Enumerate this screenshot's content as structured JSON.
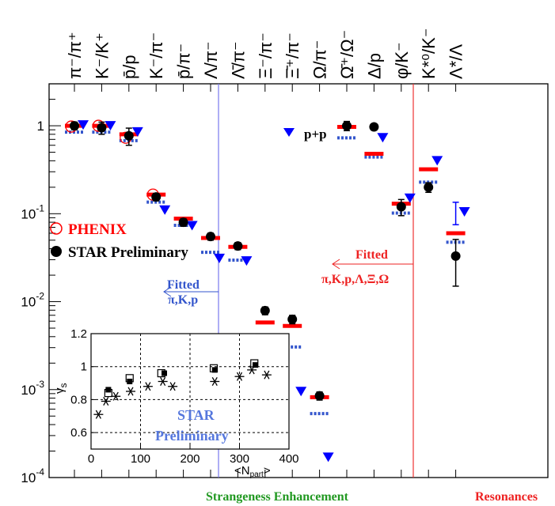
{
  "chart_data": {
    "type": "scatter",
    "yscale": "log",
    "ylim": [
      0.0001,
      3
    ],
    "yticks": [
      {
        "v": 0.0001,
        "b": "10",
        "e": "-4"
      },
      {
        "v": 0.001,
        "b": "10",
        "e": "-3"
      },
      {
        "v": 0.01,
        "b": "10",
        "e": "-2"
      },
      {
        "v": 0.1,
        "b": "10",
        "e": "-1"
      },
      {
        "v": 1,
        "b": "1",
        "e": ""
      }
    ],
    "categories": [
      "π⁻/π⁺",
      "K⁻/K⁺",
      "p̄/p",
      "K⁻/π⁻",
      "p̄/π⁻",
      "Λ/π⁻",
      "Λ̄/π⁻",
      "Ξ⁻/π⁻",
      "Ξ̄⁺/π⁻",
      "Ω/π⁻",
      "Ω̄⁺/Ω⁻",
      "Δ/p",
      "φ/K⁻",
      "K*⁰/K⁻",
      "Λ*/Λ"
    ],
    "series": [
      {
        "name": "STAR Preliminary",
        "marker": "circle-filled",
        "color": "#000000",
        "values": [
          1.0,
          0.95,
          0.77,
          0.155,
          0.08,
          0.055,
          0.043,
          0.0079,
          0.0063,
          0.00085,
          1.0,
          0.97,
          0.12,
          0.2,
          0.033
        ],
        "err": [
          0.1,
          0.15,
          0.17,
          0.015,
          0.008,
          0.005,
          0.004,
          0.0008,
          0.0007,
          9e-05,
          0.12,
          0.08,
          0.025,
          0.025,
          0.018
        ]
      },
      {
        "name": "PHENIX",
        "marker": "circle-open",
        "color": "#ff0000",
        "values": [
          0.98,
          1.0,
          0.73,
          0.165,
          null,
          null,
          null,
          null,
          null,
          null,
          null,
          null,
          null,
          null,
          null
        ]
      },
      {
        "name": "p+p",
        "marker": "triangle-down",
        "color": "#0000ff",
        "values": [
          1.02,
          1.0,
          0.85,
          0.11,
          0.073,
          0.031,
          0.029,
          0.00105,
          0.00095,
          0.00017,
          null,
          0.73,
          0.15,
          0.4,
          0.105
        ],
        "err": [
          null,
          null,
          null,
          null,
          null,
          null,
          null,
          null,
          null,
          null,
          null,
          null,
          null,
          null,
          0.03
        ]
      },
      {
        "name": "Fit π,K,p,Λ,Ξ,Ω",
        "marker": "dash-solid",
        "color": "#ff0000",
        "values": [
          1.0,
          1.0,
          0.8,
          0.165,
          0.088,
          0.053,
          0.042,
          0.0058,
          0.0053,
          0.00082,
          0.97,
          0.48,
          0.13,
          0.32,
          0.06
        ]
      },
      {
        "name": "Fit π,K,p",
        "marker": "dash-dotted",
        "color": "#3355cc",
        "values": [
          1.0,
          1.0,
          0.8,
          0.16,
          0.087,
          0.043,
          0.035,
          0.0043,
          0.0036,
          0.00063,
          0.86,
          0.52,
          0.12,
          0.27,
          0.056
        ]
      }
    ],
    "annotations": {
      "pp": "p+p",
      "phenix": "PHENIX",
      "star": "STAR Preliminary",
      "fitted_a": "Fitted",
      "fitted_a2": "π,K,p",
      "fitted_b": "Fitted",
      "fitted_b2": "π,K,p,Λ,Ξ,Ω",
      "strangeness": "Strangeness Enhancement",
      "resonances": "Resonances"
    },
    "inset": {
      "xlabel": "<N",
      "xlabel_sub": "part",
      "xlabel_end": ">",
      "ylabel": "γ",
      "ylabel_sub": "s",
      "xlim": [
        0,
        400
      ],
      "ylim": [
        0.5,
        1.2
      ],
      "xticks": [
        0,
        100,
        200,
        300,
        400
      ],
      "yticks": [
        0.6,
        0.8,
        1.0,
        1.2
      ],
      "yticklabels": [
        "0.6",
        "0.8",
        "1",
        "1.2"
      ],
      "watermark1": "STAR",
      "watermark2": "Preliminary",
      "stars_x": [
        15,
        30,
        50,
        80,
        115,
        145,
        165,
        250,
        300,
        325,
        355
      ],
      "stars_y": [
        0.71,
        0.79,
        0.82,
        0.85,
        0.88,
        0.91,
        0.88,
        0.91,
        0.94,
        0.98,
        0.95
      ],
      "filled_x": [
        35,
        78,
        148,
        250,
        332
      ],
      "filled_y": [
        0.86,
        0.91,
        0.96,
        0.98,
        1.01
      ],
      "open_x": [
        35,
        78,
        142,
        248,
        330
      ],
      "open_y": [
        0.84,
        0.93,
        0.96,
        0.99,
        1.02
      ]
    }
  }
}
